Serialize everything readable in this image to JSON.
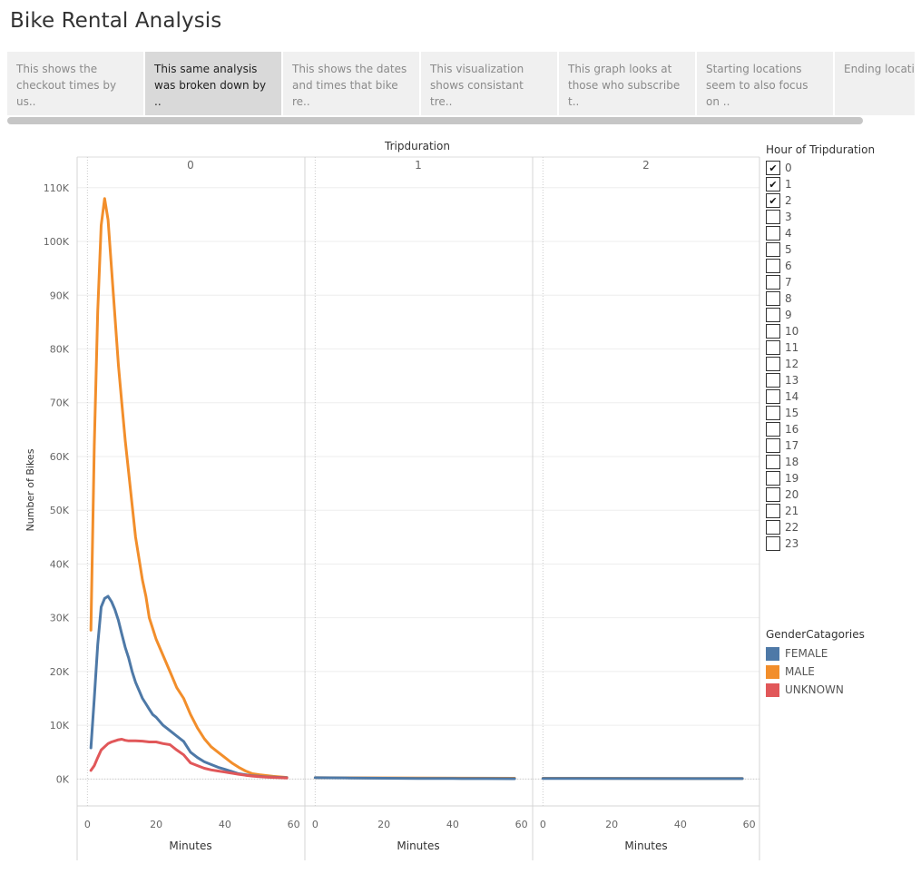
{
  "title": "Bike Rental Analysis",
  "story_points": [
    {
      "text": "This shows the checkout times by us..",
      "active": false
    },
    {
      "text": "This same analysis was broken down by ..",
      "active": true
    },
    {
      "text": "This shows the dates and times that bike re..",
      "active": false
    },
    {
      "text": "This visualization shows consistant tre..",
      "active": false
    },
    {
      "text": "This graph looks at those who subscribe t..",
      "active": false
    },
    {
      "text": "Starting locations seem to also focus on ..",
      "active": false
    },
    {
      "text": "Ending locations se..",
      "active": false
    }
  ],
  "hour_filter": {
    "title": "Hour of Tripduration",
    "items": [
      {
        "label": "0",
        "checked": true
      },
      {
        "label": "1",
        "checked": true
      },
      {
        "label": "2",
        "checked": true
      },
      {
        "label": "3",
        "checked": false
      },
      {
        "label": "4",
        "checked": false
      },
      {
        "label": "5",
        "checked": false
      },
      {
        "label": "6",
        "checked": false
      },
      {
        "label": "7",
        "checked": false
      },
      {
        "label": "8",
        "checked": false
      },
      {
        "label": "9",
        "checked": false
      },
      {
        "label": "10",
        "checked": false
      },
      {
        "label": "11",
        "checked": false
      },
      {
        "label": "12",
        "checked": false
      },
      {
        "label": "13",
        "checked": false
      },
      {
        "label": "14",
        "checked": false
      },
      {
        "label": "15",
        "checked": false
      },
      {
        "label": "16",
        "checked": false
      },
      {
        "label": "17",
        "checked": false
      },
      {
        "label": "18",
        "checked": false
      },
      {
        "label": "19",
        "checked": false
      },
      {
        "label": "20",
        "checked": false
      },
      {
        "label": "21",
        "checked": false
      },
      {
        "label": "22",
        "checked": false
      },
      {
        "label": "23",
        "checked": false
      }
    ]
  },
  "color_legend": {
    "title": "GenderCatagories",
    "items": [
      {
        "label": "FEMALE",
        "color": "#4e79a7"
      },
      {
        "label": "MALE",
        "color": "#f28e2b"
      },
      {
        "label": "UNKNOWN",
        "color": "#e15759"
      }
    ]
  },
  "chart_data": {
    "type": "line",
    "column_title": "Tripduration",
    "panels": [
      "0",
      "1",
      "2"
    ],
    "xlabel": "Minutes",
    "ylabel": "Number of Bikes",
    "xlim": [
      -3,
      63
    ],
    "ylim": [
      -5000,
      112500
    ],
    "xticks": [
      0,
      20,
      40,
      60
    ],
    "yticks": [
      0,
      10000,
      20000,
      30000,
      40000,
      50000,
      60000,
      70000,
      80000,
      90000,
      100000,
      110000
    ],
    "ytick_labels": [
      "0K",
      "10K",
      "20K",
      "30K",
      "40K",
      "50K",
      "60K",
      "70K",
      "80K",
      "90K",
      "100K",
      "110K"
    ],
    "series": [
      {
        "name": "MALE",
        "color": "#f28e2b",
        "panel": "0",
        "points": [
          [
            1,
            27700
          ],
          [
            2,
            62000
          ],
          [
            3,
            87000
          ],
          [
            4,
            103000
          ],
          [
            5,
            108000
          ],
          [
            6,
            104000
          ],
          [
            7,
            95000
          ],
          [
            8,
            86000
          ],
          [
            9,
            77000
          ],
          [
            10,
            70000
          ],
          [
            11,
            63000
          ],
          [
            12,
            57000
          ],
          [
            13,
            51000
          ],
          [
            14,
            45000
          ],
          [
            15,
            41000
          ],
          [
            16,
            37000
          ],
          [
            17,
            34000
          ],
          [
            18,
            30000
          ],
          [
            19,
            28000
          ],
          [
            20,
            26000
          ],
          [
            22,
            23000
          ],
          [
            24,
            20000
          ],
          [
            26,
            17000
          ],
          [
            28,
            15000
          ],
          [
            30,
            12000
          ],
          [
            32,
            9500
          ],
          [
            34,
            7500
          ],
          [
            36,
            6000
          ],
          [
            38,
            5000
          ],
          [
            40,
            4000
          ],
          [
            42,
            3000
          ],
          [
            44,
            2200
          ],
          [
            46,
            1500
          ],
          [
            48,
            1000
          ],
          [
            50,
            800
          ],
          [
            52,
            650
          ],
          [
            54,
            500
          ],
          [
            56,
            400
          ],
          [
            58,
            300
          ]
        ]
      },
      {
        "name": "FEMALE",
        "color": "#4e79a7",
        "panel": "0",
        "points": [
          [
            1,
            5800
          ],
          [
            2,
            15000
          ],
          [
            3,
            25000
          ],
          [
            4,
            32000
          ],
          [
            5,
            33600
          ],
          [
            6,
            34000
          ],
          [
            7,
            33000
          ],
          [
            8,
            31500
          ],
          [
            9,
            29500
          ],
          [
            10,
            27000
          ],
          [
            11,
            24500
          ],
          [
            12,
            22500
          ],
          [
            13,
            20000
          ],
          [
            14,
            18000
          ],
          [
            15,
            16500
          ],
          [
            16,
            15000
          ],
          [
            17,
            14000
          ],
          [
            18,
            13000
          ],
          [
            19,
            12000
          ],
          [
            20,
            11500
          ],
          [
            22,
            10000
          ],
          [
            24,
            9000
          ],
          [
            26,
            8000
          ],
          [
            28,
            7000
          ],
          [
            30,
            5000
          ],
          [
            32,
            4000
          ],
          [
            34,
            3200
          ],
          [
            36,
            2700
          ],
          [
            38,
            2200
          ],
          [
            40,
            1800
          ],
          [
            42,
            1400
          ],
          [
            44,
            1000
          ],
          [
            46,
            800
          ],
          [
            48,
            600
          ],
          [
            50,
            500
          ],
          [
            52,
            400
          ],
          [
            54,
            350
          ],
          [
            56,
            300
          ],
          [
            58,
            250
          ]
        ]
      },
      {
        "name": "UNKNOWN",
        "color": "#e15759",
        "panel": "0",
        "points": [
          [
            1,
            1600
          ],
          [
            2,
            2500
          ],
          [
            3,
            4000
          ],
          [
            4,
            5400
          ],
          [
            5,
            6000
          ],
          [
            6,
            6600
          ],
          [
            7,
            6900
          ],
          [
            8,
            7100
          ],
          [
            9,
            7300
          ],
          [
            10,
            7400
          ],
          [
            11,
            7200
          ],
          [
            12,
            7100
          ],
          [
            14,
            7100
          ],
          [
            16,
            7050
          ],
          [
            18,
            6900
          ],
          [
            20,
            6900
          ],
          [
            22,
            6600
          ],
          [
            24,
            6400
          ],
          [
            26,
            5400
          ],
          [
            28,
            4500
          ],
          [
            30,
            3000
          ],
          [
            32,
            2500
          ],
          [
            34,
            2000
          ],
          [
            36,
            1700
          ],
          [
            38,
            1500
          ],
          [
            40,
            1300
          ],
          [
            42,
            1100
          ],
          [
            44,
            900
          ],
          [
            46,
            700
          ],
          [
            48,
            550
          ],
          [
            50,
            450
          ],
          [
            52,
            350
          ],
          [
            54,
            300
          ],
          [
            56,
            250
          ],
          [
            58,
            200
          ]
        ]
      },
      {
        "name": "MALE",
        "color": "#f28e2b",
        "panel": "1",
        "points": [
          [
            0,
            250
          ],
          [
            58,
            150
          ]
        ]
      },
      {
        "name": "FEMALE",
        "color": "#4e79a7",
        "panel": "1",
        "points": [
          [
            0,
            250
          ],
          [
            10,
            200
          ],
          [
            20,
            150
          ],
          [
            30,
            120
          ],
          [
            40,
            100
          ],
          [
            50,
            80
          ],
          [
            58,
            60
          ]
        ]
      },
      {
        "name": "MALE",
        "color": "#f28e2b",
        "panel": "2",
        "points": [
          [
            0,
            150
          ],
          [
            58,
            100
          ]
        ]
      },
      {
        "name": "FEMALE",
        "color": "#4e79a7",
        "panel": "2",
        "points": [
          [
            0,
            120
          ],
          [
            58,
            80
          ]
        ]
      }
    ],
    "grid": true,
    "legend": "right"
  }
}
